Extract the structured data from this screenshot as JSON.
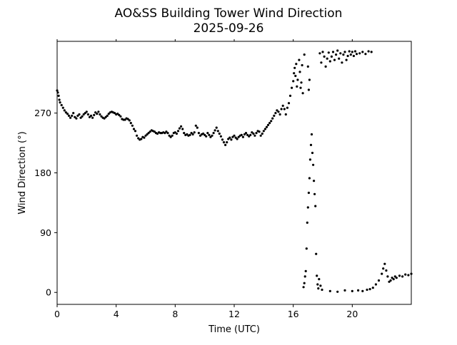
{
  "chart_data": {
    "type": "scatter",
    "title": "AO&SS Building Tower Wind Direction",
    "subtitle": "2025-09-26",
    "xlabel": "Time (UTC)",
    "ylabel": "Wind Direction (°)",
    "xlim": [
      0,
      24
    ],
    "ylim": [
      -18,
      378
    ],
    "xticks": [
      0,
      4,
      8,
      12,
      16,
      20
    ],
    "xtick_labels": [
      "0",
      "4",
      "8",
      "12",
      "16",
      "20"
    ],
    "yticks": [
      0,
      90,
      180,
      270
    ],
    "ytick_labels": [
      "0",
      "90",
      "180",
      "270"
    ],
    "grid": false,
    "legend": "none",
    "marker_color": "#000000",
    "series": [
      {
        "points": [
          [
            0.0,
            304
          ],
          [
            0.05,
            301
          ],
          [
            0.1,
            296
          ],
          [
            0.15,
            290
          ],
          [
            0.2,
            286
          ],
          [
            0.3,
            282
          ],
          [
            0.4,
            278
          ],
          [
            0.5,
            274
          ],
          [
            0.6,
            271
          ],
          [
            0.7,
            269
          ],
          [
            0.8,
            266
          ],
          [
            0.9,
            263
          ],
          [
            1.0,
            266
          ],
          [
            1.1,
            270
          ],
          [
            1.2,
            264
          ],
          [
            1.3,
            262
          ],
          [
            1.4,
            266
          ],
          [
            1.5,
            268
          ],
          [
            1.6,
            263
          ],
          [
            1.7,
            265
          ],
          [
            1.8,
            268
          ],
          [
            1.9,
            270
          ],
          [
            2.0,
            272
          ],
          [
            2.1,
            268
          ],
          [
            2.2,
            264
          ],
          [
            2.3,
            266
          ],
          [
            2.4,
            263
          ],
          [
            2.5,
            267
          ],
          [
            2.6,
            271
          ],
          [
            2.7,
            269
          ],
          [
            2.8,
            272
          ],
          [
            2.9,
            268
          ],
          [
            3.0,
            265
          ],
          [
            3.1,
            263
          ],
          [
            3.2,
            262
          ],
          [
            3.3,
            264
          ],
          [
            3.4,
            266
          ],
          [
            3.5,
            269
          ],
          [
            3.6,
            271
          ],
          [
            3.7,
            272
          ],
          [
            3.8,
            271
          ],
          [
            3.9,
            270
          ],
          [
            4.0,
            268
          ],
          [
            4.1,
            269
          ],
          [
            4.2,
            267
          ],
          [
            4.3,
            265
          ],
          [
            4.4,
            261
          ],
          [
            4.5,
            260
          ],
          [
            4.6,
            260
          ],
          [
            4.7,
            262
          ],
          [
            4.8,
            261
          ],
          [
            4.9,
            259
          ],
          [
            5.0,
            255
          ],
          [
            5.1,
            251
          ],
          [
            5.2,
            246
          ],
          [
            5.3,
            243
          ],
          [
            5.4,
            236
          ],
          [
            5.5,
            232
          ],
          [
            5.6,
            230
          ],
          [
            5.7,
            231
          ],
          [
            5.8,
            234
          ],
          [
            5.9,
            233
          ],
          [
            6.0,
            236
          ],
          [
            6.1,
            238
          ],
          [
            6.2,
            240
          ],
          [
            6.3,
            242
          ],
          [
            6.4,
            244
          ],
          [
            6.5,
            243
          ],
          [
            6.6,
            242
          ],
          [
            6.7,
            240
          ],
          [
            6.8,
            239
          ],
          [
            6.9,
            241
          ],
          [
            7.0,
            240
          ],
          [
            7.1,
            240
          ],
          [
            7.2,
            241
          ],
          [
            7.3,
            240
          ],
          [
            7.4,
            242
          ],
          [
            7.5,
            240
          ],
          [
            7.6,
            236
          ],
          [
            7.7,
            234
          ],
          [
            7.8,
            236
          ],
          [
            7.9,
            240
          ],
          [
            8.0,
            241
          ],
          [
            8.1,
            239
          ],
          [
            8.2,
            243
          ],
          [
            8.3,
            247
          ],
          [
            8.4,
            250
          ],
          [
            8.5,
            246
          ],
          [
            8.6,
            240
          ],
          [
            8.7,
            237
          ],
          [
            8.8,
            238
          ],
          [
            8.9,
            236
          ],
          [
            9.0,
            237
          ],
          [
            9.1,
            240
          ],
          [
            9.2,
            238
          ],
          [
            9.3,
            241
          ],
          [
            9.4,
            251
          ],
          [
            9.5,
            248
          ],
          [
            9.6,
            240
          ],
          [
            9.7,
            236
          ],
          [
            9.8,
            238
          ],
          [
            9.9,
            239
          ],
          [
            10.0,
            237
          ],
          [
            10.1,
            235
          ],
          [
            10.2,
            240
          ],
          [
            10.3,
            237
          ],
          [
            10.4,
            234
          ],
          [
            10.5,
            236
          ],
          [
            10.6,
            240
          ],
          [
            10.7,
            244
          ],
          [
            10.8,
            248
          ],
          [
            10.9,
            243
          ],
          [
            11.0,
            239
          ],
          [
            11.1,
            235
          ],
          [
            11.2,
            230
          ],
          [
            11.3,
            226
          ],
          [
            11.4,
            222
          ],
          [
            11.5,
            226
          ],
          [
            11.6,
            231
          ],
          [
            11.7,
            233
          ],
          [
            11.8,
            230
          ],
          [
            11.9,
            234
          ],
          [
            12.0,
            236
          ],
          [
            12.1,
            233
          ],
          [
            12.2,
            231
          ],
          [
            12.3,
            234
          ],
          [
            12.4,
            236
          ],
          [
            12.5,
            237
          ],
          [
            12.6,
            234
          ],
          [
            12.7,
            238
          ],
          [
            12.8,
            240
          ],
          [
            12.9,
            237
          ],
          [
            13.0,
            235
          ],
          [
            13.1,
            237
          ],
          [
            13.2,
            241
          ],
          [
            13.3,
            239
          ],
          [
            13.4,
            236
          ],
          [
            13.5,
            240
          ],
          [
            13.6,
            243
          ],
          [
            13.7,
            242
          ],
          [
            13.8,
            236
          ],
          [
            13.9,
            239
          ],
          [
            14.0,
            243
          ],
          [
            14.1,
            246
          ],
          [
            14.2,
            249
          ],
          [
            14.3,
            252
          ],
          [
            14.4,
            255
          ],
          [
            14.5,
            258
          ],
          [
            14.6,
            262
          ],
          [
            14.7,
            266
          ],
          [
            14.8,
            270
          ],
          [
            14.9,
            274
          ],
          [
            15.0,
            272
          ],
          [
            15.1,
            268
          ],
          [
            15.2,
            276
          ],
          [
            15.3,
            281
          ],
          [
            15.4,
            276
          ],
          [
            15.5,
            268
          ],
          [
            15.6,
            278
          ],
          [
            15.7,
            285
          ],
          [
            15.8,
            296
          ],
          [
            15.9,
            308
          ],
          [
            16.0,
            318
          ],
          [
            16.05,
            330
          ],
          [
            16.1,
            338
          ],
          [
            16.15,
            326
          ],
          [
            16.2,
            344
          ],
          [
            16.25,
            310
          ],
          [
            16.3,
            320
          ],
          [
            16.4,
            350
          ],
          [
            16.45,
            332
          ],
          [
            16.5,
            308
          ],
          [
            16.55,
            316
          ],
          [
            16.6,
            342
          ],
          [
            16.65,
            300
          ],
          [
            16.75,
            358
          ],
          [
            16.7,
            8
          ],
          [
            16.75,
            14
          ],
          [
            16.8,
            24
          ],
          [
            16.85,
            32
          ],
          [
            16.9,
            66
          ],
          [
            16.95,
            105
          ],
          [
            17.0,
            128
          ],
          [
            17.05,
            150
          ],
          [
            17.1,
            172
          ],
          [
            17.15,
            200
          ],
          [
            17.2,
            222
          ],
          [
            17.25,
            238
          ],
          [
            17.3,
            210
          ],
          [
            17.35,
            192
          ],
          [
            17.4,
            168
          ],
          [
            17.45,
            148
          ],
          [
            17.5,
            130
          ],
          [
            17.55,
            58
          ],
          [
            17.6,
            25
          ],
          [
            17.65,
            12
          ],
          [
            17.7,
            6
          ],
          [
            17.75,
            20
          ],
          [
            17.85,
            10
          ],
          [
            17.95,
            4
          ],
          [
            17.1,
            320
          ],
          [
            17.0,
            340
          ],
          [
            17.05,
            305
          ],
          [
            17.8,
            360
          ],
          [
            17.9,
            346
          ],
          [
            18.0,
            362
          ],
          [
            18.1,
            355
          ],
          [
            18.2,
            340
          ],
          [
            18.3,
            352
          ],
          [
            18.4,
            361
          ],
          [
            18.5,
            348
          ],
          [
            18.6,
            355
          ],
          [
            18.7,
            362
          ],
          [
            18.8,
            350
          ],
          [
            18.9,
            358
          ],
          [
            19.0,
            364
          ],
          [
            19.1,
            352
          ],
          [
            19.2,
            360
          ],
          [
            19.3,
            346
          ],
          [
            19.4,
            358
          ],
          [
            19.5,
            362
          ],
          [
            19.6,
            350
          ],
          [
            19.7,
            356
          ],
          [
            19.8,
            363
          ],
          [
            19.9,
            358
          ],
          [
            20.0,
            362
          ],
          [
            20.1,
            356
          ],
          [
            20.2,
            363
          ],
          [
            20.3,
            359
          ],
          [
            20.5,
            360
          ],
          [
            20.7,
            362
          ],
          [
            20.9,
            359
          ],
          [
            21.1,
            363
          ],
          [
            21.3,
            362
          ],
          [
            18.5,
            2
          ],
          [
            19.0,
            1
          ],
          [
            19.5,
            3
          ],
          [
            20.0,
            2
          ],
          [
            20.4,
            3
          ],
          [
            20.7,
            2
          ],
          [
            21.0,
            4
          ],
          [
            21.2,
            5
          ],
          [
            21.4,
            7
          ],
          [
            21.6,
            12
          ],
          [
            21.8,
            18
          ],
          [
            22.0,
            28
          ],
          [
            22.1,
            36
          ],
          [
            22.2,
            43
          ],
          [
            22.3,
            33
          ],
          [
            22.4,
            24
          ],
          [
            22.5,
            16
          ],
          [
            22.6,
            18
          ],
          [
            22.7,
            22
          ],
          [
            22.8,
            20
          ],
          [
            22.9,
            24
          ],
          [
            23.0,
            22
          ],
          [
            23.2,
            25
          ],
          [
            23.4,
            24
          ],
          [
            23.6,
            27
          ],
          [
            23.8,
            26
          ],
          [
            24.0,
            28
          ]
        ]
      }
    ]
  }
}
